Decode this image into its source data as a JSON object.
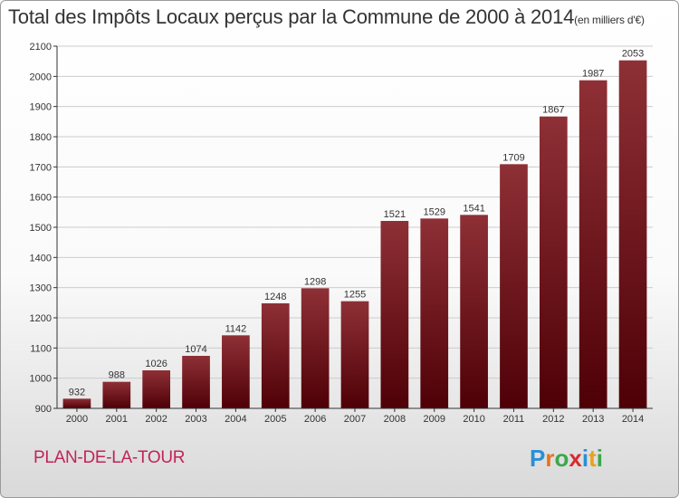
{
  "title": "Total des Impôts Locaux perçus par la Commune de 2000 à 2014",
  "title_unit": "(en milliers d'€)",
  "commune": "PLAN-DE-LA-TOUR",
  "brand": {
    "letters": [
      "P",
      "r",
      "o",
      "x",
      "i",
      "t",
      "i"
    ],
    "colors": [
      "#2a8fd6",
      "#e8731f",
      "#3aa84a",
      "#d62c2c",
      "#2a8fd6",
      "#e8a21f",
      "#3aa84a"
    ]
  },
  "colors": {
    "bar_top": "#8e3036",
    "bar_bottom": "#4e0006",
    "grid": "#cccccc",
    "axis": "#333333"
  },
  "chart_data": {
    "type": "bar",
    "categories": [
      "2000",
      "2001",
      "2002",
      "2003",
      "2004",
      "2005",
      "2006",
      "2007",
      "2008",
      "2009",
      "2010",
      "2011",
      "2012",
      "2013",
      "2014"
    ],
    "values": [
      932,
      988,
      1026,
      1074,
      1142,
      1248,
      1298,
      1255,
      1521,
      1529,
      1541,
      1709,
      1867,
      1987,
      2053
    ],
    "ylim": [
      900,
      2100
    ],
    "yticks": [
      900,
      1000,
      1100,
      1200,
      1300,
      1400,
      1500,
      1600,
      1700,
      1800,
      1900,
      2000,
      2100
    ],
    "grid": true
  }
}
